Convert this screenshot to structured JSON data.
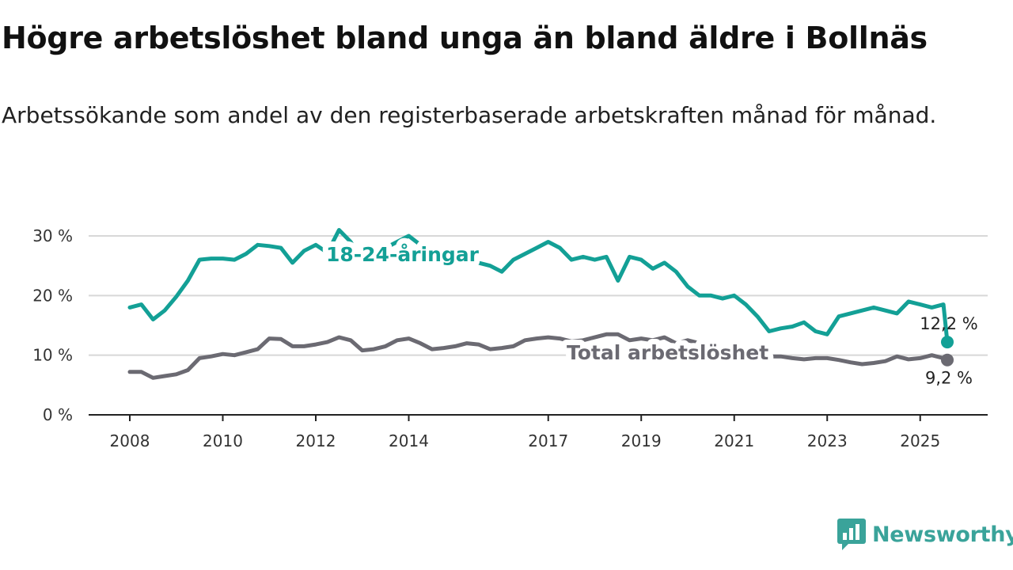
{
  "title": "Högre arbetslöshet bland unga än bland äldre i Bollnäs",
  "subtitle": "Arbetssökande som andel av den registerbaserade arbetskraften månad för månad.",
  "brand": {
    "name": "Newsworthy",
    "icon": "newsworthy-logo-icon",
    "color": "#3aa39a"
  },
  "chart_data": {
    "type": "line",
    "x_ticks": [
      "2008",
      "2010",
      "2012",
      "2014",
      "2017",
      "2019",
      "2021",
      "2023",
      "2025"
    ],
    "y_ticks": [
      "0 %",
      "10 %",
      "20 %",
      "30 %"
    ],
    "ylim": [
      0,
      30
    ],
    "xlim": [
      "2008-01",
      "2025-08"
    ],
    "grid": "horizontal",
    "legend": "inline labels",
    "series": [
      {
        "name": "18-24-åringar",
        "color": "#13a096",
        "end_label": "12,2 %",
        "points": [
          [
            "2008-01",
            18.0
          ],
          [
            "2008-04",
            18.5
          ],
          [
            "2008-07",
            16.0
          ],
          [
            "2008-10",
            17.5
          ],
          [
            "2009-01",
            19.8
          ],
          [
            "2009-04",
            22.5
          ],
          [
            "2009-07",
            26.0
          ],
          [
            "2009-10",
            26.2
          ],
          [
            "2010-01",
            26.2
          ],
          [
            "2010-04",
            26.0
          ],
          [
            "2010-07",
            27.0
          ],
          [
            "2010-10",
            28.5
          ],
          [
            "2011-01",
            28.3
          ],
          [
            "2011-04",
            28.0
          ],
          [
            "2011-07",
            25.5
          ],
          [
            "2011-10",
            27.5
          ],
          [
            "2012-01",
            28.5
          ],
          [
            "2012-04",
            27.2
          ],
          [
            "2012-07",
            31.0
          ],
          [
            "2012-10",
            29.0
          ],
          [
            "2013-01",
            25.8
          ],
          [
            "2013-04",
            26.5
          ],
          [
            "2013-07",
            28.0
          ],
          [
            "2013-10",
            29.0
          ],
          [
            "2014-01",
            30.0
          ],
          [
            "2014-04",
            28.5
          ],
          [
            "2014-07",
            26.5
          ],
          [
            "2014-10",
            25.0
          ],
          [
            "2015-01",
            25.0
          ],
          [
            "2015-04",
            27.0
          ],
          [
            "2015-07",
            25.5
          ],
          [
            "2015-10",
            25.0
          ],
          [
            "2016-01",
            24.0
          ],
          [
            "2016-04",
            26.0
          ],
          [
            "2016-07",
            27.0
          ],
          [
            "2016-10",
            28.0
          ],
          [
            "2017-01",
            29.0
          ],
          [
            "2017-04",
            28.0
          ],
          [
            "2017-07",
            26.0
          ],
          [
            "2017-10",
            26.5
          ],
          [
            "2018-01",
            26.0
          ],
          [
            "2018-04",
            26.5
          ],
          [
            "2018-07",
            22.5
          ],
          [
            "2018-10",
            26.5
          ],
          [
            "2019-01",
            26.0
          ],
          [
            "2019-04",
            24.5
          ],
          [
            "2019-07",
            25.5
          ],
          [
            "2019-10",
            24.0
          ],
          [
            "2020-01",
            21.5
          ],
          [
            "2020-04",
            20.0
          ],
          [
            "2020-07",
            20.0
          ],
          [
            "2020-10",
            19.5
          ],
          [
            "2021-01",
            20.0
          ],
          [
            "2021-04",
            18.5
          ],
          [
            "2021-07",
            16.5
          ],
          [
            "2021-10",
            14.0
          ],
          [
            "2022-01",
            14.5
          ],
          [
            "2022-04",
            14.8
          ],
          [
            "2022-07",
            15.5
          ],
          [
            "2022-10",
            14.0
          ],
          [
            "2023-01",
            13.5
          ],
          [
            "2023-04",
            16.5
          ],
          [
            "2023-07",
            17.0
          ],
          [
            "2023-10",
            17.5
          ],
          [
            "2024-01",
            18.0
          ],
          [
            "2024-04",
            17.5
          ],
          [
            "2024-07",
            17.0
          ],
          [
            "2024-10",
            19.0
          ],
          [
            "2025-01",
            18.5
          ],
          [
            "2025-04",
            18.0
          ],
          [
            "2025-07",
            18.5
          ],
          [
            "2025-08",
            12.2
          ]
        ]
      },
      {
        "name": "Total arbetslöshet",
        "color": "#6b6a72",
        "end_label": "9,2 %",
        "points": [
          [
            "2008-01",
            7.2
          ],
          [
            "2008-04",
            7.2
          ],
          [
            "2008-07",
            6.2
          ],
          [
            "2008-10",
            6.5
          ],
          [
            "2009-01",
            6.8
          ],
          [
            "2009-04",
            7.5
          ],
          [
            "2009-07",
            9.5
          ],
          [
            "2009-10",
            9.8
          ],
          [
            "2010-01",
            10.2
          ],
          [
            "2010-04",
            10.0
          ],
          [
            "2010-07",
            10.5
          ],
          [
            "2010-10",
            11.0
          ],
          [
            "2011-01",
            12.8
          ],
          [
            "2011-04",
            12.7
          ],
          [
            "2011-07",
            11.5
          ],
          [
            "2011-10",
            11.5
          ],
          [
            "2012-01",
            11.8
          ],
          [
            "2012-04",
            12.2
          ],
          [
            "2012-07",
            13.0
          ],
          [
            "2012-10",
            12.5
          ],
          [
            "2013-01",
            10.8
          ],
          [
            "2013-04",
            11.0
          ],
          [
            "2013-07",
            11.5
          ],
          [
            "2013-10",
            12.5
          ],
          [
            "2014-01",
            12.8
          ],
          [
            "2014-04",
            12.0
          ],
          [
            "2014-07",
            11.0
          ],
          [
            "2014-10",
            11.2
          ],
          [
            "2015-01",
            11.5
          ],
          [
            "2015-04",
            12.0
          ],
          [
            "2015-07",
            11.8
          ],
          [
            "2015-10",
            11.0
          ],
          [
            "2016-01",
            11.2
          ],
          [
            "2016-04",
            11.5
          ],
          [
            "2016-07",
            12.5
          ],
          [
            "2016-10",
            12.8
          ],
          [
            "2017-01",
            13.0
          ],
          [
            "2017-04",
            12.8
          ],
          [
            "2017-07",
            12.3
          ],
          [
            "2017-10",
            12.5
          ],
          [
            "2018-01",
            13.0
          ],
          [
            "2018-04",
            13.5
          ],
          [
            "2018-07",
            13.5
          ],
          [
            "2018-10",
            12.5
          ],
          [
            "2019-01",
            12.8
          ],
          [
            "2019-04",
            12.5
          ],
          [
            "2019-07",
            13.0
          ],
          [
            "2019-10",
            12.0
          ],
          [
            "2020-01",
            12.5
          ],
          [
            "2020-04",
            12.0
          ],
          [
            "2020-07",
            11.5
          ],
          [
            "2020-10",
            11.0
          ],
          [
            "2021-01",
            11.0
          ],
          [
            "2021-04",
            10.5
          ],
          [
            "2021-07",
            10.0
          ],
          [
            "2021-10",
            9.8
          ],
          [
            "2022-01",
            9.8
          ],
          [
            "2022-04",
            9.5
          ],
          [
            "2022-07",
            9.3
          ],
          [
            "2022-10",
            9.5
          ],
          [
            "2023-01",
            9.5
          ],
          [
            "2023-04",
            9.2
          ],
          [
            "2023-07",
            8.8
          ],
          [
            "2023-10",
            8.5
          ],
          [
            "2024-01",
            8.7
          ],
          [
            "2024-04",
            9.0
          ],
          [
            "2024-07",
            9.8
          ],
          [
            "2024-10",
            9.3
          ],
          [
            "2025-01",
            9.5
          ],
          [
            "2025-04",
            10.0
          ],
          [
            "2025-07",
            9.5
          ],
          [
            "2025-08",
            9.2
          ]
        ]
      }
    ]
  }
}
